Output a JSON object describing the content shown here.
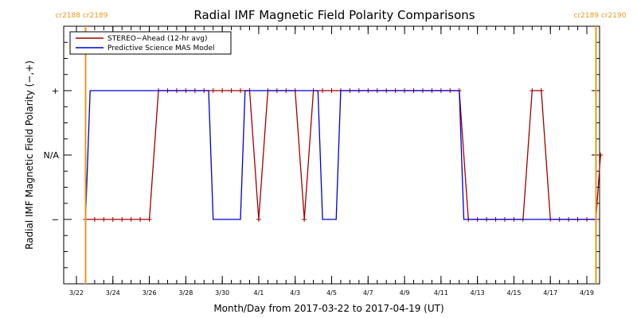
{
  "chart_data": {
    "type": "line",
    "title": "Radial IMF Magnetic Field Polarity Comparisons",
    "xlabel": "Month/Day from 2017-03-22 to 2017-04-19 (UT)",
    "ylabel": "Radial IMF Magnetic Field Polarity (−,+)",
    "xlim": [
      "2017-03-22",
      "2017-04-19"
    ],
    "x_ticks": [
      {
        "date": "2017-03-22",
        "label": "3/22"
      },
      {
        "date": "2017-03-24",
        "label": "3/24"
      },
      {
        "date": "2017-03-26",
        "label": "3/26"
      },
      {
        "date": "2017-03-28",
        "label": "3/28"
      },
      {
        "date": "2017-03-30",
        "label": "3/30"
      },
      {
        "date": "2017-04-01",
        "label": "4/1"
      },
      {
        "date": "2017-04-03",
        "label": "4/3"
      },
      {
        "date": "2017-04-05",
        "label": "4/5"
      },
      {
        "date": "2017-04-07",
        "label": "4/7"
      },
      {
        "date": "2017-04-09",
        "label": "4/9"
      },
      {
        "date": "2017-04-11",
        "label": "4/11"
      },
      {
        "date": "2017-04-13",
        "label": "4/13"
      },
      {
        "date": "2017-04-15",
        "label": "4/15"
      },
      {
        "date": "2017-04-17",
        "label": "4/17"
      },
      {
        "date": "2017-04-19",
        "label": "4/19"
      }
    ],
    "y_ticks": [
      {
        "value": 1,
        "label": "+"
      },
      {
        "value": 0,
        "label": "N/A"
      },
      {
        "value": -1,
        "label": "−"
      }
    ],
    "ylim": [
      -2,
      2
    ],
    "grid": false,
    "legend_position": "top-left",
    "carrington_markers": [
      {
        "date": "2017-03-22 12:00",
        "label": "cr2188 cr2189",
        "side": "left"
      },
      {
        "date": "2017-04-19 12:00",
        "label": "cr2189 cr2190",
        "side": "right"
      }
    ],
    "series": [
      {
        "name": "STEREO−Ahead (12-hr avg)",
        "color": "#a00000",
        "marker": "+",
        "points": [
          [
            "2017-03-22 12:00",
            -1
          ],
          [
            "2017-03-23 00:00",
            -1
          ],
          [
            "2017-03-23 12:00",
            -1
          ],
          [
            "2017-03-24 00:00",
            -1
          ],
          [
            "2017-03-24 12:00",
            -1
          ],
          [
            "2017-03-25 00:00",
            -1
          ],
          [
            "2017-03-25 12:00",
            -1
          ],
          [
            "2017-03-26 00:00",
            -1
          ],
          [
            "2017-03-26 12:00",
            1
          ],
          [
            "2017-03-27 00:00",
            1
          ],
          [
            "2017-03-27 12:00",
            1
          ],
          [
            "2017-03-28 00:00",
            1
          ],
          [
            "2017-03-28 12:00",
            1
          ],
          [
            "2017-03-29 00:00",
            1
          ],
          [
            "2017-03-29 12:00",
            1
          ],
          [
            "2017-03-30 00:00",
            1
          ],
          [
            "2017-03-30 12:00",
            1
          ],
          [
            "2017-03-31 00:00",
            1
          ],
          [
            "2017-03-31 12:00",
            1
          ],
          [
            "2017-04-01 00:00",
            -1
          ],
          [
            "2017-04-01 12:00",
            1
          ],
          [
            "2017-04-02 00:00",
            1
          ],
          [
            "2017-04-02 12:00",
            1
          ],
          [
            "2017-04-03 00:00",
            1
          ],
          [
            "2017-04-03 12:00",
            -1
          ],
          [
            "2017-04-04 00:00",
            1
          ],
          [
            "2017-04-04 12:00",
            1
          ],
          [
            "2017-04-05 00:00",
            1
          ],
          [
            "2017-04-05 12:00",
            1
          ],
          [
            "2017-04-06 00:00",
            1
          ],
          [
            "2017-04-06 12:00",
            1
          ],
          [
            "2017-04-07 00:00",
            1
          ],
          [
            "2017-04-07 12:00",
            1
          ],
          [
            "2017-04-08 00:00",
            1
          ],
          [
            "2017-04-08 12:00",
            1
          ],
          [
            "2017-04-09 00:00",
            1
          ],
          [
            "2017-04-09 12:00",
            1
          ],
          [
            "2017-04-10 00:00",
            1
          ],
          [
            "2017-04-10 12:00",
            1
          ],
          [
            "2017-04-11 00:00",
            1
          ],
          [
            "2017-04-11 12:00",
            1
          ],
          [
            "2017-04-12 00:00",
            1
          ],
          [
            "2017-04-12 12:00",
            -1
          ],
          [
            "2017-04-13 00:00",
            -1
          ],
          [
            "2017-04-13 12:00",
            -1
          ],
          [
            "2017-04-14 00:00",
            -1
          ],
          [
            "2017-04-14 12:00",
            -1
          ],
          [
            "2017-04-15 00:00",
            -1
          ],
          [
            "2017-04-15 12:00",
            -1
          ],
          [
            "2017-04-16 00:00",
            1
          ],
          [
            "2017-04-16 12:00",
            1
          ],
          [
            "2017-04-17 00:00",
            -1
          ],
          [
            "2017-04-17 12:00",
            -1
          ],
          [
            "2017-04-18 00:00",
            -1
          ],
          [
            "2017-04-18 12:00",
            -1
          ],
          [
            "2017-04-19 00:00",
            -1
          ],
          [
            "2017-04-19 12:00",
            -1
          ],
          [
            "2017-04-19 18:00",
            0
          ]
        ]
      },
      {
        "name": "Predictive Science MAS Model",
        "color": "#0000d0",
        "marker": "none",
        "points": [
          [
            "2017-03-22 12:00",
            -1
          ],
          [
            "2017-03-22 18:00",
            1
          ],
          [
            "2017-03-29 06:00",
            1
          ],
          [
            "2017-03-29 12:00",
            -1
          ],
          [
            "2017-03-31 00:00",
            -1
          ],
          [
            "2017-03-31 06:00",
            1
          ],
          [
            "2017-04-04 06:00",
            1
          ],
          [
            "2017-04-04 12:00",
            -1
          ],
          [
            "2017-04-05 06:00",
            -1
          ],
          [
            "2017-04-05 12:00",
            1
          ],
          [
            "2017-04-12 00:00",
            1
          ],
          [
            "2017-04-12 06:00",
            -1
          ],
          [
            "2017-04-19 12:00",
            -1
          ]
        ]
      }
    ]
  }
}
